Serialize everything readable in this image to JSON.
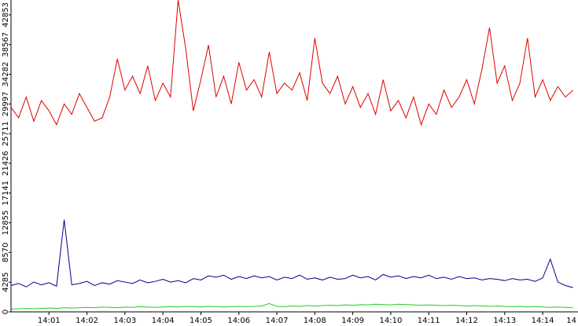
{
  "chart_data": {
    "type": "line",
    "x": [
      0,
      0.2,
      0.4,
      0.6,
      0.8,
      1,
      1.2,
      1.4,
      1.6,
      1.8,
      2,
      2.2,
      2.4,
      2.6,
      2.8,
      3,
      3.2,
      3.4,
      3.6,
      3.8,
      4,
      4.2,
      4.4,
      4.6,
      4.8,
      5,
      5.2,
      5.4,
      5.6,
      5.8,
      6,
      6.2,
      6.4,
      6.6,
      6.8,
      7,
      7.2,
      7.4,
      7.6,
      7.8,
      8,
      8.2,
      8.4,
      8.6,
      8.8,
      9,
      9.2,
      9.4,
      9.6,
      9.8,
      10,
      10.2,
      10.4,
      10.6,
      10.8,
      11,
      11.2,
      11.4,
      11.6,
      11.8,
      12,
      12.2,
      12.4,
      12.6,
      12.8,
      13,
      13.2,
      13.4,
      13.6,
      13.8,
      14,
      14.2,
      14.4,
      14.6,
      14.8
    ],
    "series": [
      {
        "color": "#e00000",
        "values": [
          29500,
          28000,
          31000,
          27500,
          30500,
          29000,
          27000,
          30000,
          28500,
          31500,
          29500,
          27500,
          28000,
          31000,
          36500,
          32000,
          34000,
          31500,
          35500,
          30500,
          33000,
          31000,
          45000,
          38000,
          29000,
          33500,
          38500,
          31000,
          34000,
          30000,
          36000,
          32000,
          33500,
          31000,
          37500,
          31500,
          33000,
          32000,
          34500,
          30500,
          39500,
          33000,
          31500,
          34000,
          30000,
          32500,
          29500,
          31500,
          28500,
          33500,
          29000,
          30500,
          28000,
          31000,
          27000,
          30000,
          28500,
          32000,
          29500,
          31000,
          33500,
          30000,
          35000,
          41000,
          33000,
          35500,
          30500,
          33000,
          39500,
          31000,
          33500,
          30500,
          32500,
          31000,
          32000
        ]
      },
      {
        "color": "#00008b",
        "values": [
          3800,
          4100,
          3600,
          4300,
          3900,
          4200,
          3700,
          13300,
          3900,
          4100,
          4400,
          3800,
          4200,
          4000,
          4500,
          4300,
          4100,
          4600,
          4200,
          4400,
          4700,
          4300,
          4500,
          4200,
          4800,
          4600,
          5200,
          5000,
          5300,
          4700,
          5100,
          4800,
          5200,
          4900,
          5100,
          4600,
          5000,
          4800,
          5300,
          4700,
          4900,
          4600,
          5000,
          4700,
          4800,
          5300,
          4900,
          5100,
          4600,
          5400,
          5000,
          5200,
          4800,
          5100,
          4900,
          5300,
          4800,
          5000,
          4700,
          5100,
          4800,
          4900,
          4600,
          4800,
          4700,
          4500,
          4800,
          4600,
          4700,
          4400,
          4900,
          7600,
          4300,
          3800,
          3500
        ]
      },
      {
        "color": "#22cc22",
        "values": [
          400,
          450,
          500,
          450,
          500,
          550,
          500,
          600,
          550,
          600,
          650,
          600,
          700,
          650,
          600,
          700,
          650,
          750,
          700,
          650,
          700,
          750,
          700,
          800,
          750,
          700,
          800,
          750,
          700,
          750,
          800,
          750,
          800,
          850,
          1200,
          800,
          750,
          850,
          800,
          900,
          850,
          900,
          950,
          900,
          1000,
          950,
          1050,
          1000,
          1100,
          1050,
          1000,
          1100,
          1050,
          1000,
          950,
          1000,
          950,
          900,
          950,
          900,
          850,
          900,
          850,
          800,
          850,
          800,
          750,
          800,
          700,
          750,
          700,
          650,
          700,
          650,
          600
        ]
      }
    ],
    "xlim": [
      0,
      14.93
    ],
    "xticks": [
      {
        "value": 1,
        "label": "14:01"
      },
      {
        "value": 2,
        "label": "14:02"
      },
      {
        "value": 3,
        "label": "14:03"
      },
      {
        "value": 4,
        "label": "14:04"
      },
      {
        "value": 5,
        "label": "14:05"
      },
      {
        "value": 6,
        "label": "14:06"
      },
      {
        "value": 7,
        "label": "14:07"
      },
      {
        "value": 8,
        "label": "14:08"
      },
      {
        "value": 9,
        "label": "14:09"
      },
      {
        "value": 10,
        "label": "14:10"
      },
      {
        "value": 11,
        "label": "14:11"
      },
      {
        "value": 12,
        "label": "14:12"
      },
      {
        "value": 13,
        "label": "14:13"
      },
      {
        "value": 14,
        "label": "14:14"
      },
      {
        "value": 15,
        "label": "14"
      }
    ],
    "ylim": [
      0,
      45000
    ],
    "yticks": [
      0,
      4285,
      8570,
      12855,
      17141,
      21426,
      25711,
      29997,
      34282,
      38567,
      42853
    ]
  }
}
